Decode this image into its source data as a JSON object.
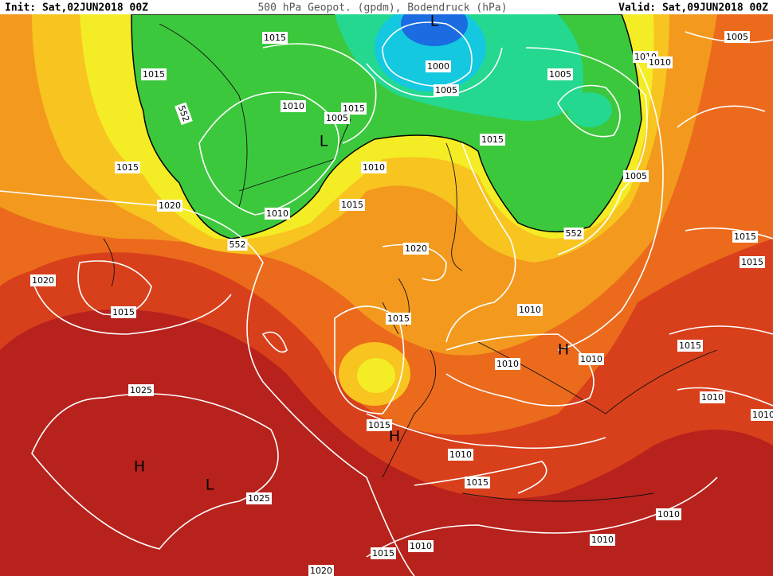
{
  "header": {
    "init": "Init: Sat,02JUN2018 00Z",
    "title": "500 hPa Geopot. (gpdm), Bodendruck (hPa)",
    "valid": "Valid: Sat,09JUN2018 00Z"
  },
  "isobar_labels": [
    "1015",
    "1015",
    "1010",
    "1015",
    "1005",
    "1000",
    "1005",
    "1005",
    "1010",
    "1010",
    "1005",
    "1015",
    "1010",
    "1015",
    "1005",
    "1020",
    "1010",
    "1015",
    "1020",
    "1015",
    "1015",
    "1020",
    "1015",
    "1015",
    "1010",
    "1010",
    "1010",
    "1015",
    "1010",
    "1025",
    "1015",
    "1010",
    "1015",
    "1025",
    "1010",
    "1010",
    "1015",
    "1010",
    "1020",
    "1010"
  ],
  "geopotential_labels": [
    "552",
    "552",
    "552"
  ],
  "pressure_centers": [
    "L",
    "L",
    "H",
    "H",
    "H",
    "L"
  ]
}
